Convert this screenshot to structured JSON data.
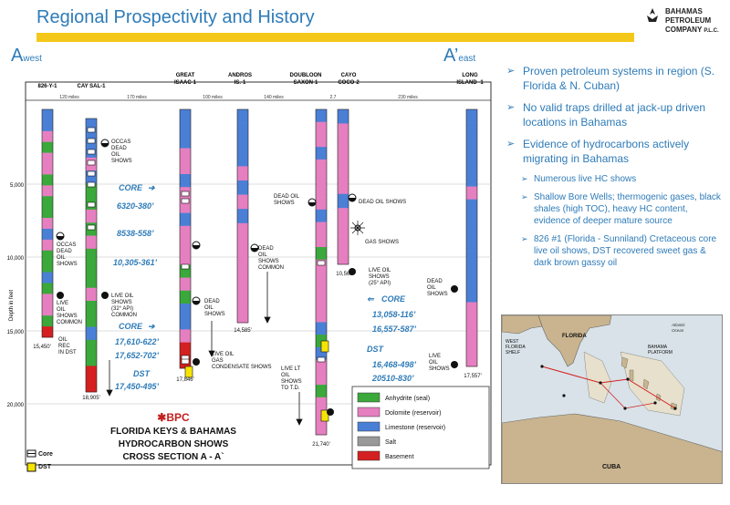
{
  "title": "Regional Prospectivity and History",
  "logo": {
    "line1": "BAHAMAS",
    "line2": "PETROLEUM",
    "line3": "COMPANY",
    "suffix": "P.L.C."
  },
  "section": {
    "a_west": "A",
    "a_west_sub": "west",
    "a_east": "A’",
    "a_east_sub": "east"
  },
  "wells": [
    {
      "name": "826-Y-1",
      "depth": "15,450'"
    },
    {
      "name": "CAY SAL-1",
      "depth": "18,905'"
    },
    {
      "name": "GREAT ISAAC-1",
      "depth": "17,846'"
    },
    {
      "name": "ANDROS IS.-1",
      "depth": "14,585'"
    },
    {
      "name": "DOUBLOON SAXON-1",
      "depth": "21,740'"
    },
    {
      "name": "CAYO COCO-2",
      "depth": "10,563'"
    },
    {
      "name": "LONG ISLAND -1",
      "depth": "17,557'"
    }
  ],
  "distances": [
    "120 miles",
    "170 miles",
    "100 miles",
    "140 miles",
    "2.7",
    "230 miles"
  ],
  "depth_axis": {
    "label": "Depth in feet",
    "ticks": [
      "5,000",
      "10,000",
      "15,000",
      "20,000"
    ]
  },
  "annotations": {
    "occas_top": "OCCAS DEAD OIL SHOWS",
    "occas_left": "OCCAS DEAD OIL SHOWS",
    "live_left": "LIVE OIL SHOWS COMMON",
    "oil_rec": "OIL REC IN DST",
    "live_32": "LIVE OIL SHOWS (32° API) COMMON",
    "dead_gi": "DEAD OIL SHOWS",
    "live_gas": "LIVE OIL GAS CONDENSATE SHOWS",
    "dead_andros": "DEAD OIL SHOWS COMMON",
    "dead_doubloon": "DEAD OIL SHOWS",
    "live_lt": "LIVE LT OIL SHOWS TO T.D.",
    "dead_cayo": "DEAD OIL SHOWS",
    "gas_shows": "GAS SHOWS",
    "live_25": "LIVE OIL SHOWS (25° API)",
    "dead_long": "DEAD OIL SHOWS",
    "live_long": "LIVE OIL SHOWS"
  },
  "core_west": {
    "label": "CORE",
    "values": [
      "6320-380’",
      "8538-558’",
      "10,305-361’"
    ]
  },
  "core_mid": {
    "label": "CORE",
    "values": [
      "17,610-622’",
      "17,652-702’"
    ]
  },
  "dst_mid": {
    "label": "DST",
    "values": [
      "17,450-495’"
    ]
  },
  "core_east": {
    "label": "CORE",
    "values": [
      "13,058-116’",
      "16,557-587’"
    ]
  },
  "dst_east": {
    "label": "DST",
    "values": [
      "16,468-498’",
      "20510-830’"
    ]
  },
  "legend": [
    {
      "label": "Anhydrite (seal)",
      "color": "#3aa83a"
    },
    {
      "label": "Dolomite (reservoir)",
      "color": "#e57fc0"
    },
    {
      "label": "Limestone (reservoir)",
      "color": "#4a7fd6"
    },
    {
      "label": "Salt",
      "color": "#999999"
    },
    {
      "label": "Basement",
      "color": "#d42020"
    }
  ],
  "key": {
    "core": "Core",
    "dst": "DST"
  },
  "caption": {
    "brand": "BPC",
    "line1": "FLORIDA KEYS & BAHAMAS",
    "line2": "HYDROCARBON SHOWS",
    "line3": "CROSS SECTION A - A`"
  },
  "bullets": [
    {
      "level": 1,
      "text": "Proven petroleum systems in region (S. Florida & N. Cuban)"
    },
    {
      "level": 1,
      "text": "No valid traps drilled at jack-up driven locations in Bahamas"
    },
    {
      "level": 1,
      "text": "Evidence of hydrocarbons actively migrating in Bahamas"
    },
    {
      "level": 2,
      "text": "Numerous live HC shows"
    },
    {
      "level": 2,
      "text": "Shallow Bore Wells;  thermogenic gases, black shales (high TOC), heavy HC content, evidence of deeper mature source"
    },
    {
      "level": 2,
      "text": "826 #1 (Florida - Sunniland) Cretaceous core live oil shows, DST recovered sweet gas & dark brown gassy oil"
    }
  ],
  "map": {
    "florida": "FLORIDA",
    "west_shelf": "WEST FLORIDA SHELF",
    "platform": "BAHAMA PLATFORM",
    "ocean": "Atlantic Ocean",
    "cuba": "CUBA"
  }
}
